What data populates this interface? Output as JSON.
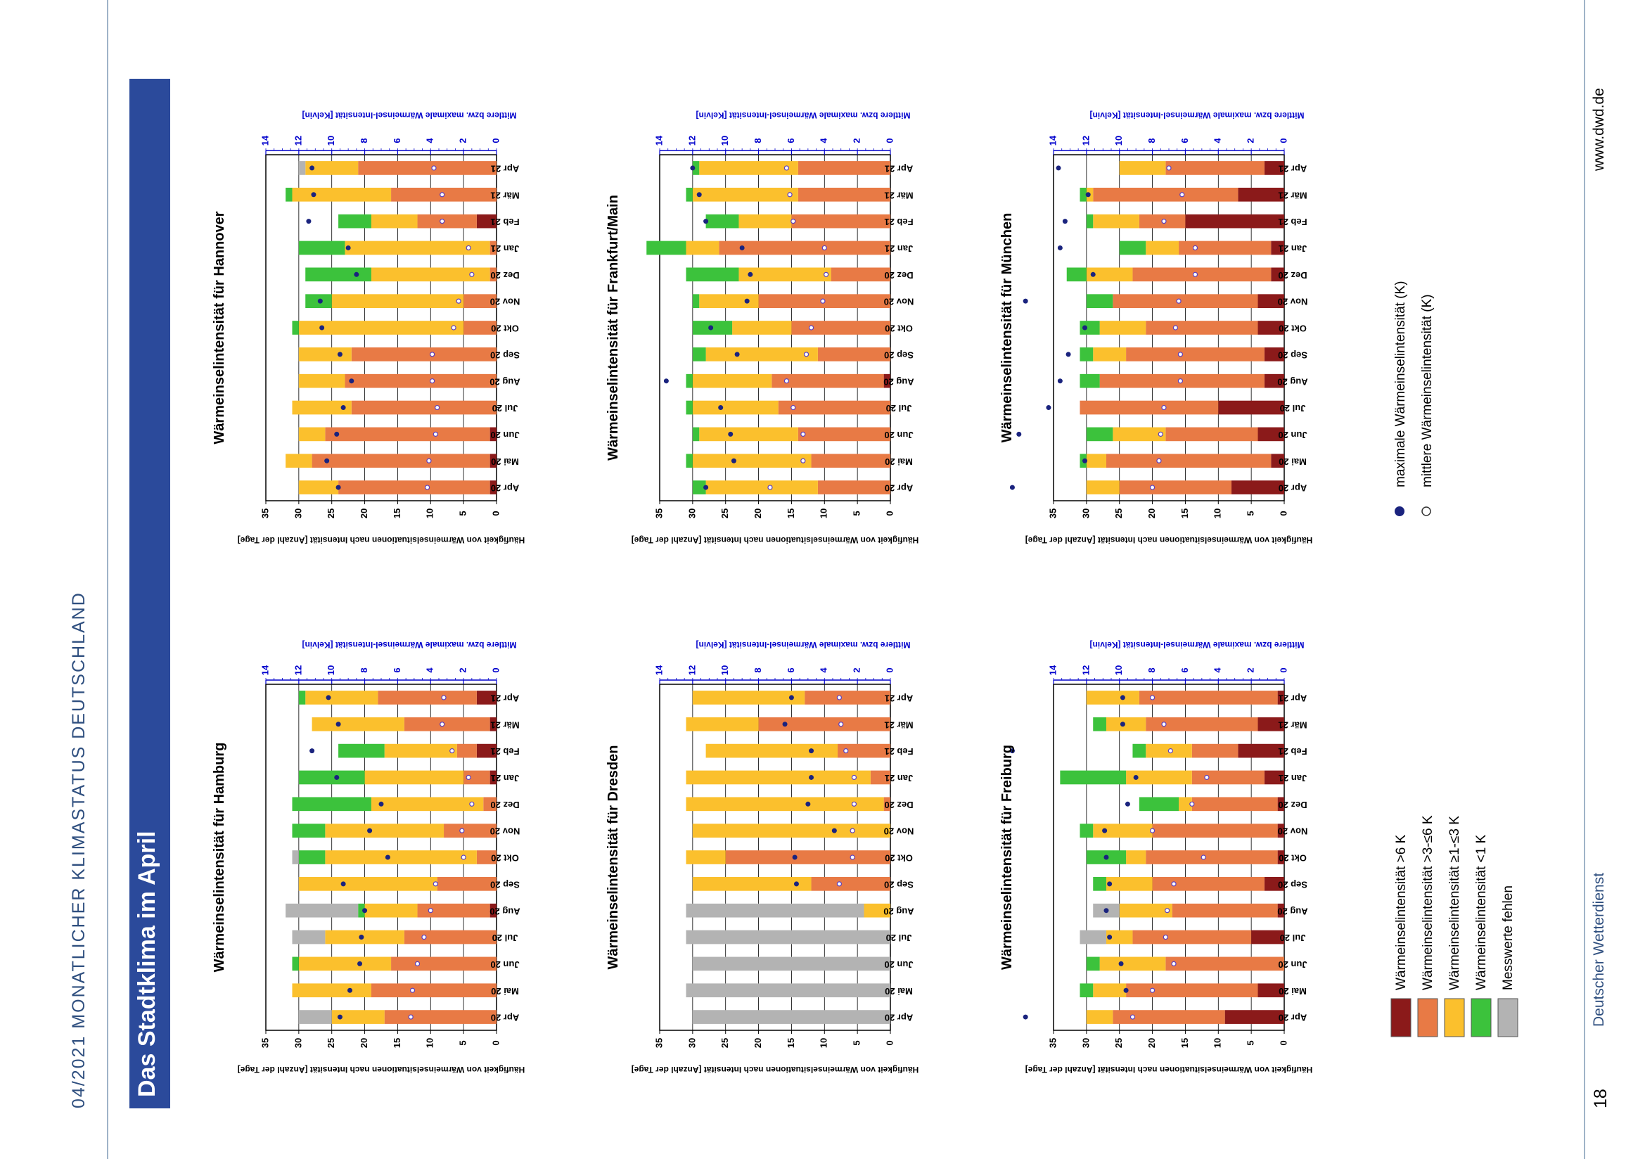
{
  "header": {
    "left_header": "04/2021  MONATLICHER KLIMASTATUS DEUTSCHLAND",
    "page_title": "Das Stadtklima im April",
    "publisher": "Deutscher Wetterdienst",
    "page_number": "18",
    "website": "www.dwd.de"
  },
  "colors": {
    "c1": "#8b1a1a",
    "c2": "#e87a45",
    "c3": "#fbc02d",
    "c4": "#3cc23c",
    "c5": "#b3b3b3",
    "max_marker": "#1a237e",
    "mean_marker": "#5a3fc0",
    "axis_blue": "#0000cc"
  },
  "legend": {
    "categories": [
      {
        "key": "c1",
        "label": "Wärmeinselintensität >6 K"
      },
      {
        "key": "c2",
        "label": "Wärmeinselintensität >3-≤6 K"
      },
      {
        "key": "c3",
        "label": "Wärmeinselintensität ≥1-≤3 K"
      },
      {
        "key": "c4",
        "label": "Wärmeinselintensität <1 K"
      },
      {
        "key": "c5",
        "label": "Messwerte fehlen"
      }
    ],
    "markers": [
      {
        "kind": "max",
        "label": "maximale Wärmeinselintensität (K)"
      },
      {
        "kind": "mean",
        "label": "mittlere Wärmeinselintensität (K)"
      }
    ]
  },
  "chart_data": [
    {
      "type": "bar",
      "title": "Wärmeinselintensität für Hamburg",
      "categories": [
        "Apr 20",
        "Mai 20",
        "Jun 20",
        "Jul 20",
        "Aug 20",
        "Sep 20",
        "Okt 20",
        "Nov 20",
        "Dez 20",
        "Jan 21",
        "Feb 21",
        "Mär 21",
        "Apr 21"
      ],
      "xlabel": "Häufigkeit von Wärmeinselsituationen nach Intensität [Anzahl der Tage]",
      "x_ticks": [
        0,
        5,
        10,
        15,
        20,
        25,
        30,
        35
      ],
      "x2label": "Mittlere bzw. maximale Wärmeinsel-Intensität [Kelvin]",
      "x2_ticks": [
        0,
        2,
        4,
        6,
        8,
        10,
        12,
        14
      ],
      "series": {
        "c1": [
          0,
          0,
          0,
          0,
          1,
          0,
          0,
          0,
          0,
          1,
          3,
          1,
          3
        ],
        "c2": [
          17,
          19,
          16,
          14,
          11,
          9,
          3,
          8,
          2,
          4,
          3,
          13,
          15
        ],
        "c3": [
          8,
          12,
          14,
          12,
          8,
          21,
          23,
          18,
          17,
          15,
          11,
          14,
          11
        ],
        "c4": [
          0,
          0,
          1,
          0,
          1,
          0,
          4,
          5,
          12,
          10,
          7,
          0,
          1
        ],
        "c5": [
          5,
          0,
          0,
          5,
          11,
          0,
          1,
          0,
          0,
          0,
          0,
          0,
          0
        ]
      },
      "max_k": [
        9.5,
        8.9,
        8.3,
        8.2,
        8.0,
        9.3,
        6.6,
        7.7,
        7.0,
        9.7,
        11.2,
        9.6,
        10.2
      ],
      "mean_k": [
        5.2,
        5.1,
        4.8,
        4.4,
        4.0,
        3.7,
        2.0,
        2.1,
        1.5,
        1.7,
        2.7,
        3.3,
        3.2
      ]
    },
    {
      "type": "bar",
      "title": "Wärmeinselintensität für Hannover",
      "categories": [
        "Apr 20",
        "Mai 20",
        "Jun 20",
        "Jul 20",
        "Aug 20",
        "Sep 20",
        "Okt 20",
        "Nov 20",
        "Dez 20",
        "Jan 21",
        "Feb 21",
        "Mär 21",
        "Apr 21"
      ],
      "xlabel": "Häufigkeit von Wärmeinselsituationen nach Intensität [Anzahl der Tage]",
      "x_ticks": [
        0,
        5,
        10,
        15,
        20,
        25,
        30,
        35
      ],
      "x2label": "Mittlere bzw. maximale Wärmeinsel-Intensität [Kelvin]",
      "x2_ticks": [
        0,
        2,
        4,
        6,
        8,
        10,
        12,
        14
      ],
      "series": {
        "c1": [
          1,
          1,
          1,
          0,
          0,
          0,
          0,
          0,
          0,
          0,
          3,
          0,
          0
        ],
        "c2": [
          23,
          27,
          25,
          22,
          23,
          22,
          5,
          5,
          1,
          1,
          9,
          16,
          21
        ],
        "c3": [
          6,
          4,
          4,
          9,
          7,
          8,
          25,
          20,
          18,
          22,
          7,
          15,
          8
        ],
        "c4": [
          0,
          0,
          0,
          0,
          0,
          0,
          1,
          4,
          10,
          7,
          5,
          1,
          0
        ],
        "c5": [
          0,
          0,
          0,
          0,
          0,
          0,
          0,
          0,
          0,
          0,
          0,
          0,
          1
        ]
      },
      "max_k": [
        9.6,
        10.3,
        9.7,
        9.3,
        8.8,
        9.5,
        10.6,
        10.7,
        8.5,
        9.0,
        11.4,
        11.1,
        11.2
      ],
      "mean_k": [
        4.2,
        4.1,
        3.7,
        3.6,
        3.9,
        3.9,
        2.6,
        2.3,
        1.5,
        1.7,
        3.3,
        3.3,
        3.8
      ]
    },
    {
      "type": "bar",
      "title": "Wärmeinselintensität für Dresden",
      "categories": [
        "Apr 20",
        "Mai 20",
        "Jun 20",
        "Jul 20",
        "Aug 20",
        "Sep 20",
        "Okt 20",
        "Nov 20",
        "Dez 20",
        "Jan 21",
        "Feb 21",
        "Mär 21",
        "Apr 21"
      ],
      "xlabel": "Häufigkeit von Wärmeinselsituationen nach Intensität [Anzahl der Tage]",
      "x_ticks": [
        0,
        5,
        10,
        15,
        20,
        25,
        30,
        35
      ],
      "x2label": "Mittlere bzw. maximale Wärmeinsel-Intensität [Kelvin]",
      "x2_ticks": [
        0,
        2,
        4,
        6,
        8,
        10,
        12,
        14
      ],
      "series": {
        "c1": [
          0,
          0,
          0,
          0,
          0,
          0,
          0,
          0,
          0,
          0,
          0,
          0,
          0
        ],
        "c2": [
          0,
          0,
          0,
          0,
          0,
          12,
          25,
          0,
          1,
          3,
          8,
          20,
          13
        ],
        "c3": [
          0,
          0,
          0,
          0,
          4,
          18,
          6,
          30,
          30,
          28,
          20,
          11,
          17
        ],
        "c4": [
          0,
          0,
          0,
          0,
          0,
          0,
          0,
          0,
          0,
          0,
          0,
          0,
          0
        ],
        "c5": [
          30,
          31,
          30,
          31,
          27,
          0,
          0,
          0,
          0,
          0,
          0,
          0,
          0
        ]
      },
      "max_k": [
        null,
        null,
        null,
        null,
        null,
        5.7,
        5.8,
        3.4,
        5.0,
        4.8,
        4.8,
        6.4,
        6.0
      ],
      "mean_k": [
        null,
        null,
        null,
        null,
        null,
        3.1,
        2.3,
        2.3,
        2.2,
        2.2,
        2.7,
        3.0,
        3.1
      ]
    },
    {
      "type": "bar",
      "title": "Wärmeinselintensität für Frankfurt/Main",
      "categories": [
        "Apr 20",
        "Mai 20",
        "Jun 20",
        "Jul 20",
        "Aug 20",
        "Sep 20",
        "Okt 20",
        "Nov 20",
        "Dez 20",
        "Jan 21",
        "Feb 21",
        "Mär 21",
        "Apr 21"
      ],
      "xlabel": "Häufigkeit von Wärmeinselsituationen nach Intensität [Anzahl der Tage]",
      "x_ticks": [
        0,
        5,
        10,
        15,
        20,
        25,
        30,
        35
      ],
      "x2label": "Mittlere bzw. maximale Wärmeinsel-Intensität [Kelvin]",
      "x2_ticks": [
        0,
        2,
        4,
        6,
        8,
        10,
        12,
        14
      ],
      "series": {
        "c1": [
          0,
          0,
          0,
          0,
          1,
          0,
          0,
          0,
          0,
          0,
          0,
          0,
          0
        ],
        "c2": [
          11,
          12,
          14,
          17,
          17,
          11,
          15,
          20,
          9,
          26,
          15,
          14,
          14
        ],
        "c3": [
          17,
          18,
          15,
          13,
          12,
          17,
          9,
          9,
          14,
          5,
          8,
          16,
          15
        ],
        "c4": [
          2,
          1,
          1,
          1,
          1,
          2,
          6,
          1,
          8,
          6,
          5,
          1,
          1
        ],
        "c5": [
          0,
          0,
          0,
          0,
          0,
          0,
          0,
          0,
          0,
          0,
          0,
          0,
          0
        ]
      },
      "max_k": [
        11.2,
        9.5,
        9.7,
        10.3,
        13.6,
        9.3,
        10.9,
        8.7,
        8.5,
        9.0,
        11.2,
        11.6,
        12.0
      ],
      "mean_k": [
        7.3,
        5.3,
        5.3,
        5.9,
        6.3,
        5.1,
        4.8,
        4.1,
        3.9,
        4.0,
        5.9,
        6.1,
        6.3
      ]
    },
    {
      "type": "bar",
      "title": "Wärmeinselintensität für Freiburg",
      "categories": [
        "Apr 20",
        "Mai 20",
        "Jun 20",
        "Jul 20",
        "Aug 20",
        "Sep 20",
        "Okt 20",
        "Nov 20",
        "Dez 20",
        "Jan 21",
        "Feb 21",
        "Mär 21",
        "Apr 21"
      ],
      "xlabel": "Häufigkeit von Wärmeinselsituationen nach Intensität [Anzahl der Tage]",
      "x_ticks": [
        0,
        5,
        10,
        15,
        20,
        25,
        30,
        35
      ],
      "x2label": "Mittlere bzw. maximale Wärmeinsel-Intensität [Kelvin]",
      "x2_ticks": [
        0,
        2,
        4,
        6,
        8,
        10,
        12,
        14
      ],
      "series": {
        "c1": [
          9,
          4,
          0,
          5,
          1,
          3,
          1,
          1,
          1,
          3,
          7,
          4,
          1
        ],
        "c2": [
          17,
          20,
          18,
          18,
          16,
          17,
          20,
          19,
          13,
          11,
          7,
          17,
          21
        ],
        "c3": [
          4,
          5,
          10,
          4,
          8,
          7,
          3,
          9,
          2,
          10,
          7,
          6,
          8
        ],
        "c4": [
          0,
          2,
          2,
          0,
          0,
          2,
          6,
          2,
          6,
          10,
          2,
          2,
          0
        ],
        "c5": [
          0,
          0,
          0,
          4,
          4,
          0,
          0,
          0,
          0,
          0,
          0,
          0,
          0
        ]
      },
      "max_k": [
        15.7,
        9.6,
        9.9,
        10.6,
        10.8,
        10.6,
        10.8,
        10.9,
        9.5,
        9.0,
        16.5,
        9.8,
        9.8
      ],
      "mean_k": [
        9.2,
        8.0,
        6.7,
        7.2,
        7.1,
        6.7,
        4.9,
        8.0,
        5.6,
        4.7,
        6.9,
        7.3,
        8.0
      ]
    },
    {
      "type": "bar",
      "title": "Wärmeinselintensität für München",
      "categories": [
        "Apr 20",
        "Mai 20",
        "Jun 20",
        "Jul 20",
        "Aug 20",
        "Sep 20",
        "Okt 20",
        "Nov 20",
        "Dez 20",
        "Jan 21",
        "Feb 21",
        "Mär 21",
        "Apr 21"
      ],
      "xlabel": "Häufigkeit von Wärmeinselsituationen nach Intensität [Anzahl der Tage]",
      "x_ticks": [
        0,
        5,
        10,
        15,
        20,
        25,
        30,
        35
      ],
      "x2label": "Mittlere bzw. maximale Wärmeinsel-Intensität [Kelvin]",
      "x2_ticks": [
        0,
        2,
        4,
        6,
        8,
        10,
        12,
        14
      ],
      "series": {
        "c1": [
          8,
          2,
          4,
          10,
          3,
          3,
          4,
          4,
          2,
          2,
          15,
          7,
          3
        ],
        "c2": [
          17,
          25,
          14,
          21,
          25,
          21,
          17,
          22,
          21,
          14,
          7,
          22,
          15
        ],
        "c3": [
          5,
          3,
          8,
          0,
          0,
          5,
          7,
          0,
          7,
          5,
          7,
          1,
          7
        ],
        "c4": [
          0,
          1,
          4,
          0,
          3,
          2,
          3,
          4,
          3,
          4,
          1,
          1,
          0
        ],
        "c5": [
          0,
          0,
          0,
          0,
          0,
          0,
          0,
          0,
          0,
          0,
          0,
          0,
          0
        ]
      },
      "max_k": [
        16.5,
        12.1,
        16.1,
        14.3,
        13.6,
        13.1,
        12.1,
        15.7,
        11.6,
        13.6,
        13.3,
        11.9,
        13.7
      ],
      "mean_k": [
        8.0,
        7.6,
        7.5,
        7.3,
        6.3,
        6.3,
        6.6,
        6.4,
        5.4,
        5.4,
        7.3,
        6.2,
        7.0
      ]
    }
  ]
}
